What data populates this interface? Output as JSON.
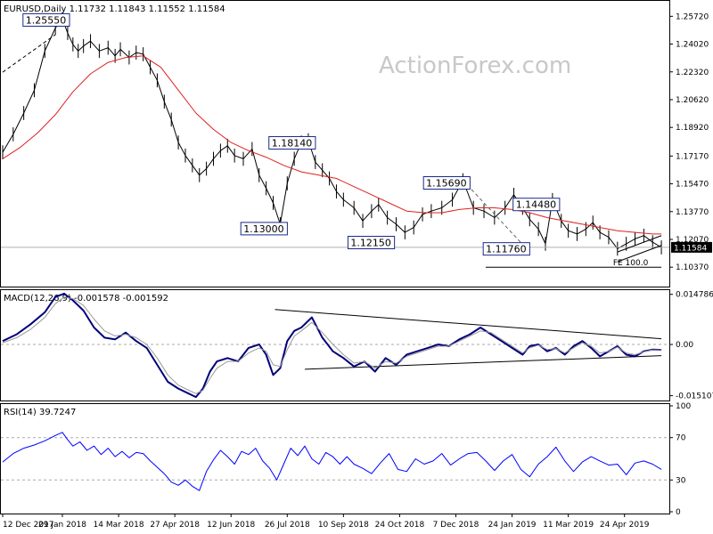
{
  "chart_data": [
    {
      "type": "line",
      "title": "EURUSD,Daily  1.11732 1.11843 1.11552 1.11584",
      "watermark": "ActionForex.com",
      "ylim": [
        1.094,
        1.265
      ],
      "yticks": [
        "1.25720",
        "1.24020",
        "1.22320",
        "1.20620",
        "1.18920",
        "1.17170",
        "1.15470",
        "1.13770",
        "1.12070",
        "1.10370"
      ],
      "last_price": "1.11584",
      "series": [
        {
          "kind": "price",
          "color": "#000000",
          "x": [
            0,
            6,
            12,
            18,
            24,
            30,
            34,
            37,
            40,
            43,
            46,
            50,
            55,
            60,
            64,
            67,
            72,
            76,
            80,
            84,
            88,
            92,
            96,
            100,
            104,
            108,
            112,
            116,
            120,
            124,
            128,
            132,
            137,
            142,
            146,
            150,
            154,
            158,
            162,
            166,
            170,
            174,
            178,
            182,
            186,
            190,
            194,
            200,
            205,
            210,
            214,
            219,
            224,
            229,
            234,
            239,
            244,
            250,
            256,
            262,
            268,
            274,
            280,
            286,
            291,
            296,
            300,
            305,
            309,
            313,
            318,
            322,
            327,
            332,
            336,
            340,
            345,
            350,
            355,
            360,
            365,
            370,
            375
          ],
          "y": [
            1.174,
            1.185,
            1.198,
            1.212,
            1.236,
            1.25,
            1.2555,
            1.247,
            1.24,
            1.236,
            1.239,
            1.242,
            1.236,
            1.238,
            1.233,
            1.237,
            1.232,
            1.235,
            1.234,
            1.226,
            1.218,
            1.205,
            1.194,
            1.18,
            1.172,
            1.166,
            1.16,
            1.164,
            1.17,
            1.175,
            1.178,
            1.172,
            1.17,
            1.176,
            1.16,
            1.152,
            1.143,
            1.13,
            1.155,
            1.17,
            1.18,
            1.1814,
            1.168,
            1.163,
            1.158,
            1.15,
            1.145,
            1.14,
            1.132,
            1.138,
            1.142,
            1.134,
            1.13,
            1.125,
            1.128,
            1.136,
            1.138,
            1.14,
            1.145,
            1.1569,
            1.14,
            1.138,
            1.134,
            1.14,
            1.148,
            1.14,
            1.133,
            1.127,
            1.118,
            1.1448,
            1.132,
            1.126,
            1.124,
            1.127,
            1.131,
            1.125,
            1.122,
            1.115,
            1.118,
            1.121,
            1.123,
            1.119,
            1.1158
          ]
        },
        {
          "kind": "sma",
          "color": "#e02020",
          "x": [
            0,
            10,
            20,
            30,
            40,
            50,
            60,
            70,
            80,
            90,
            100,
            110,
            120,
            130,
            140,
            150,
            160,
            170,
            180,
            190,
            200,
            210,
            220,
            230,
            240,
            250,
            260,
            270,
            280,
            290,
            300,
            310,
            320,
            330,
            340,
            350,
            360,
            370,
            375
          ],
          "y": [
            1.17,
            1.177,
            1.186,
            1.197,
            1.211,
            1.222,
            1.229,
            1.232,
            1.233,
            1.226,
            1.212,
            1.198,
            1.188,
            1.18,
            1.175,
            1.171,
            1.166,
            1.162,
            1.16,
            1.158,
            1.153,
            1.148,
            1.143,
            1.138,
            1.137,
            1.137,
            1.139,
            1.14,
            1.14,
            1.139,
            1.137,
            1.134,
            1.132,
            1.13,
            1.128,
            1.126,
            1.125,
            1.124,
            1.124
          ]
        }
      ],
      "annotations": [
        {
          "text": "1.25550",
          "x": 34,
          "y": 1.2555
        },
        {
          "text": "1.18140",
          "x": 174,
          "y": 1.1814
        },
        {
          "text": "1.13000",
          "x": 158,
          "y": 1.13
        },
        {
          "text": "1.15690",
          "x": 262,
          "y": 1.1569
        },
        {
          "text": "1.12150",
          "x": 219,
          "y": 1.1215
        },
        {
          "text": "1.14480",
          "x": 313,
          "y": 1.1448
        },
        {
          "text": "1.11760",
          "x": 296,
          "y": 1.1176
        },
        {
          "text": "FE 100.0",
          "x": 350,
          "y": 1.1037
        }
      ],
      "grid": false
    },
    {
      "type": "line",
      "title": "MACD(12,26,9) -0.001578 -0.001592",
      "ylim": [
        -0.016,
        0.0155
      ],
      "yticks": [
        "0.014786",
        "0.00",
        "-0.015107"
      ],
      "series": [
        {
          "kind": "macd",
          "color": "#00007a",
          "x": [
            0,
            8,
            16,
            24,
            30,
            35,
            40,
            46,
            52,
            58,
            64,
            70,
            76,
            82,
            88,
            94,
            100,
            106,
            110,
            114,
            118,
            122,
            128,
            134,
            140,
            146,
            150,
            154,
            158,
            162,
            166,
            170,
            176,
            182,
            188,
            194,
            200,
            206,
            212,
            218,
            224,
            230,
            236,
            242,
            248,
            254,
            260,
            266,
            272,
            278,
            284,
            290,
            296,
            300,
            305,
            310,
            315,
            320,
            325,
            330,
            335,
            340,
            345,
            350,
            355,
            360,
            365,
            370,
            375
          ],
          "y": [
            0.001,
            0.003,
            0.006,
            0.0095,
            0.014,
            0.015,
            0.013,
            0.01,
            0.005,
            0.002,
            0.0015,
            0.0035,
            0.001,
            -0.001,
            -0.006,
            -0.011,
            -0.013,
            -0.0145,
            -0.0155,
            -0.013,
            -0.008,
            -0.005,
            -0.004,
            -0.005,
            -0.001,
            0.0,
            -0.003,
            -0.009,
            -0.007,
            0.001,
            0.004,
            0.005,
            0.008,
            0.002,
            -0.002,
            -0.004,
            -0.0065,
            -0.005,
            -0.008,
            -0.004,
            -0.006,
            -0.003,
            -0.002,
            -0.001,
            0.0,
            -0.0005,
            0.0015,
            0.003,
            0.005,
            0.003,
            0.001,
            -0.001,
            -0.003,
            -0.0005,
            0.0,
            -0.002,
            -0.001,
            -0.003,
            -0.0005,
            0.001,
            -0.001,
            -0.0035,
            -0.002,
            -0.0005,
            -0.003,
            -0.0035,
            -0.002,
            -0.0015,
            -0.0016
          ]
        },
        {
          "kind": "signal",
          "color": "#999999",
          "x": [
            0,
            8,
            16,
            24,
            30,
            35,
            40,
            46,
            52,
            58,
            64,
            70,
            76,
            82,
            88,
            94,
            100,
            106,
            110,
            114,
            118,
            122,
            128,
            134,
            140,
            146,
            150,
            154,
            158,
            162,
            166,
            170,
            176,
            182,
            188,
            194,
            200,
            206,
            212,
            218,
            224,
            230,
            236,
            242,
            248,
            254,
            260,
            266,
            272,
            278,
            284,
            290,
            296,
            300,
            305,
            310,
            315,
            320,
            325,
            330,
            335,
            340,
            345,
            350,
            355,
            360,
            365,
            370,
            375
          ],
          "y": [
            0.0005,
            0.002,
            0.0045,
            0.008,
            0.012,
            0.014,
            0.0135,
            0.0115,
            0.0075,
            0.004,
            0.0025,
            0.003,
            0.002,
            0.0,
            -0.004,
            -0.009,
            -0.012,
            -0.0135,
            -0.0145,
            -0.0135,
            -0.01,
            -0.007,
            -0.005,
            -0.005,
            -0.0025,
            -0.001,
            -0.002,
            -0.006,
            -0.0065,
            -0.0015,
            0.0025,
            0.004,
            0.0065,
            0.0035,
            0.0,
            -0.003,
            -0.0055,
            -0.005,
            -0.007,
            -0.005,
            -0.0055,
            -0.0035,
            -0.0025,
            -0.0015,
            -0.0005,
            -0.0005,
            0.001,
            0.0025,
            0.004,
            0.0035,
            0.0015,
            -0.0005,
            -0.0025,
            -0.001,
            -0.0002,
            -0.0015,
            -0.0012,
            -0.0025,
            -0.001,
            0.0005,
            -0.0005,
            -0.0025,
            -0.002,
            -0.0008,
            -0.0025,
            -0.003,
            -0.0022,
            -0.0016,
            -0.0016
          ]
        }
      ],
      "trendlines": [
        {
          "x": [
            155,
            375
          ],
          "y": [
            0.0103,
            0.0017
          ]
        },
        {
          "x": [
            172,
            375
          ],
          "y": [
            -0.0073,
            -0.0033
          ]
        }
      ]
    },
    {
      "type": "line",
      "title": "RSI(14) 39.7247",
      "ylim": [
        0,
        100
      ],
      "yticks": [
        "100",
        "70",
        "30",
        "0"
      ],
      "levels": [
        70,
        30
      ],
      "series": [
        {
          "kind": "rsi",
          "color": "#0000ff",
          "x": [
            0,
            6,
            12,
            18,
            24,
            30,
            34,
            37,
            40,
            44,
            48,
            52,
            56,
            60,
            64,
            68,
            72,
            76,
            80,
            84,
            88,
            92,
            96,
            100,
            104,
            108,
            112,
            116,
            120,
            124,
            128,
            132,
            136,
            140,
            144,
            148,
            152,
            156,
            160,
            164,
            168,
            172,
            176,
            180,
            184,
            188,
            192,
            196,
            200,
            205,
            210,
            215,
            220,
            225,
            230,
            235,
            240,
            245,
            250,
            255,
            260,
            265,
            270,
            275,
            280,
            285,
            290,
            295,
            300,
            305,
            310,
            315,
            320,
            325,
            330,
            335,
            340,
            345,
            350,
            355,
            360,
            365,
            370,
            375
          ],
          "y": [
            47,
            55,
            60,
            63,
            67,
            72,
            75,
            68,
            62,
            66,
            58,
            62,
            54,
            60,
            52,
            57,
            51,
            56,
            55,
            48,
            42,
            36,
            28,
            25,
            30,
            24,
            20,
            38,
            49,
            58,
            52,
            45,
            57,
            54,
            60,
            48,
            41,
            30,
            45,
            60,
            53,
            62,
            50,
            45,
            56,
            52,
            45,
            52,
            45,
            41,
            36,
            46,
            55,
            40,
            38,
            50,
            45,
            48,
            55,
            44,
            50,
            55,
            56,
            48,
            39,
            48,
            54,
            40,
            33,
            45,
            52,
            61,
            48,
            38,
            47,
            52,
            48,
            44,
            45,
            35,
            46,
            48,
            45,
            40
          ]
        }
      ]
    }
  ],
  "x_axis": {
    "labels": [
      "12 Dec 2017",
      "29 Jan 2018",
      "14 Mar 2018",
      "27 Apr 2018",
      "12 Jun 2018",
      "26 Jul 2018",
      "10 Sep 2018",
      "24 Oct 2018",
      "7 Dec 2018",
      "24 Jan 2019",
      "11 Mar 2019",
      "24 Apr 2019"
    ],
    "label_index": [
      0,
      34,
      66,
      98,
      130,
      162,
      194,
      226,
      258,
      290,
      322,
      354
    ],
    "index_range": [
      0,
      378
    ]
  }
}
